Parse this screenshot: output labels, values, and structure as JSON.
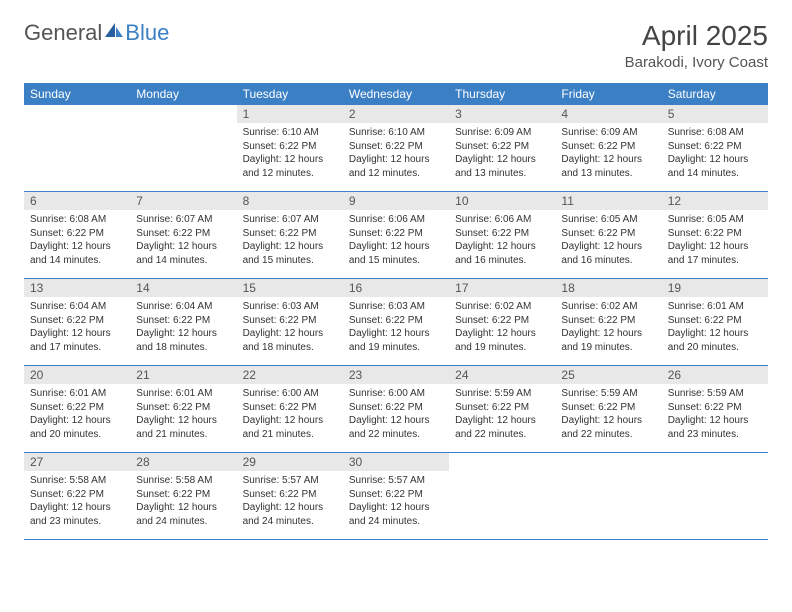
{
  "logo": {
    "text1": "General",
    "text2": "Blue"
  },
  "title": "April 2025",
  "location": "Barakodi, Ivory Coast",
  "colors": {
    "header_bg": "#3b7fc4",
    "daynum_bg": "#e8e8e8",
    "text": "#333333",
    "title_text": "#444444",
    "logo_gray": "#555555",
    "logo_blue": "#3b7fc4"
  },
  "day_names": [
    "Sunday",
    "Monday",
    "Tuesday",
    "Wednesday",
    "Thursday",
    "Friday",
    "Saturday"
  ],
  "weeks": [
    [
      {
        "num": "",
        "sunrise": "",
        "sunset": "",
        "daylight": ""
      },
      {
        "num": "",
        "sunrise": "",
        "sunset": "",
        "daylight": ""
      },
      {
        "num": "1",
        "sunrise": "Sunrise: 6:10 AM",
        "sunset": "Sunset: 6:22 PM",
        "daylight": "Daylight: 12 hours and 12 minutes."
      },
      {
        "num": "2",
        "sunrise": "Sunrise: 6:10 AM",
        "sunset": "Sunset: 6:22 PM",
        "daylight": "Daylight: 12 hours and 12 minutes."
      },
      {
        "num": "3",
        "sunrise": "Sunrise: 6:09 AM",
        "sunset": "Sunset: 6:22 PM",
        "daylight": "Daylight: 12 hours and 13 minutes."
      },
      {
        "num": "4",
        "sunrise": "Sunrise: 6:09 AM",
        "sunset": "Sunset: 6:22 PM",
        "daylight": "Daylight: 12 hours and 13 minutes."
      },
      {
        "num": "5",
        "sunrise": "Sunrise: 6:08 AM",
        "sunset": "Sunset: 6:22 PM",
        "daylight": "Daylight: 12 hours and 14 minutes."
      }
    ],
    [
      {
        "num": "6",
        "sunrise": "Sunrise: 6:08 AM",
        "sunset": "Sunset: 6:22 PM",
        "daylight": "Daylight: 12 hours and 14 minutes."
      },
      {
        "num": "7",
        "sunrise": "Sunrise: 6:07 AM",
        "sunset": "Sunset: 6:22 PM",
        "daylight": "Daylight: 12 hours and 14 minutes."
      },
      {
        "num": "8",
        "sunrise": "Sunrise: 6:07 AM",
        "sunset": "Sunset: 6:22 PM",
        "daylight": "Daylight: 12 hours and 15 minutes."
      },
      {
        "num": "9",
        "sunrise": "Sunrise: 6:06 AM",
        "sunset": "Sunset: 6:22 PM",
        "daylight": "Daylight: 12 hours and 15 minutes."
      },
      {
        "num": "10",
        "sunrise": "Sunrise: 6:06 AM",
        "sunset": "Sunset: 6:22 PM",
        "daylight": "Daylight: 12 hours and 16 minutes."
      },
      {
        "num": "11",
        "sunrise": "Sunrise: 6:05 AM",
        "sunset": "Sunset: 6:22 PM",
        "daylight": "Daylight: 12 hours and 16 minutes."
      },
      {
        "num": "12",
        "sunrise": "Sunrise: 6:05 AM",
        "sunset": "Sunset: 6:22 PM",
        "daylight": "Daylight: 12 hours and 17 minutes."
      }
    ],
    [
      {
        "num": "13",
        "sunrise": "Sunrise: 6:04 AM",
        "sunset": "Sunset: 6:22 PM",
        "daylight": "Daylight: 12 hours and 17 minutes."
      },
      {
        "num": "14",
        "sunrise": "Sunrise: 6:04 AM",
        "sunset": "Sunset: 6:22 PM",
        "daylight": "Daylight: 12 hours and 18 minutes."
      },
      {
        "num": "15",
        "sunrise": "Sunrise: 6:03 AM",
        "sunset": "Sunset: 6:22 PM",
        "daylight": "Daylight: 12 hours and 18 minutes."
      },
      {
        "num": "16",
        "sunrise": "Sunrise: 6:03 AM",
        "sunset": "Sunset: 6:22 PM",
        "daylight": "Daylight: 12 hours and 19 minutes."
      },
      {
        "num": "17",
        "sunrise": "Sunrise: 6:02 AM",
        "sunset": "Sunset: 6:22 PM",
        "daylight": "Daylight: 12 hours and 19 minutes."
      },
      {
        "num": "18",
        "sunrise": "Sunrise: 6:02 AM",
        "sunset": "Sunset: 6:22 PM",
        "daylight": "Daylight: 12 hours and 19 minutes."
      },
      {
        "num": "19",
        "sunrise": "Sunrise: 6:01 AM",
        "sunset": "Sunset: 6:22 PM",
        "daylight": "Daylight: 12 hours and 20 minutes."
      }
    ],
    [
      {
        "num": "20",
        "sunrise": "Sunrise: 6:01 AM",
        "sunset": "Sunset: 6:22 PM",
        "daylight": "Daylight: 12 hours and 20 minutes."
      },
      {
        "num": "21",
        "sunrise": "Sunrise: 6:01 AM",
        "sunset": "Sunset: 6:22 PM",
        "daylight": "Daylight: 12 hours and 21 minutes."
      },
      {
        "num": "22",
        "sunrise": "Sunrise: 6:00 AM",
        "sunset": "Sunset: 6:22 PM",
        "daylight": "Daylight: 12 hours and 21 minutes."
      },
      {
        "num": "23",
        "sunrise": "Sunrise: 6:00 AM",
        "sunset": "Sunset: 6:22 PM",
        "daylight": "Daylight: 12 hours and 22 minutes."
      },
      {
        "num": "24",
        "sunrise": "Sunrise: 5:59 AM",
        "sunset": "Sunset: 6:22 PM",
        "daylight": "Daylight: 12 hours and 22 minutes."
      },
      {
        "num": "25",
        "sunrise": "Sunrise: 5:59 AM",
        "sunset": "Sunset: 6:22 PM",
        "daylight": "Daylight: 12 hours and 22 minutes."
      },
      {
        "num": "26",
        "sunrise": "Sunrise: 5:59 AM",
        "sunset": "Sunset: 6:22 PM",
        "daylight": "Daylight: 12 hours and 23 minutes."
      }
    ],
    [
      {
        "num": "27",
        "sunrise": "Sunrise: 5:58 AM",
        "sunset": "Sunset: 6:22 PM",
        "daylight": "Daylight: 12 hours and 23 minutes."
      },
      {
        "num": "28",
        "sunrise": "Sunrise: 5:58 AM",
        "sunset": "Sunset: 6:22 PM",
        "daylight": "Daylight: 12 hours and 24 minutes."
      },
      {
        "num": "29",
        "sunrise": "Sunrise: 5:57 AM",
        "sunset": "Sunset: 6:22 PM",
        "daylight": "Daylight: 12 hours and 24 minutes."
      },
      {
        "num": "30",
        "sunrise": "Sunrise: 5:57 AM",
        "sunset": "Sunset: 6:22 PM",
        "daylight": "Daylight: 12 hours and 24 minutes."
      },
      {
        "num": "",
        "sunrise": "",
        "sunset": "",
        "daylight": ""
      },
      {
        "num": "",
        "sunrise": "",
        "sunset": "",
        "daylight": ""
      },
      {
        "num": "",
        "sunrise": "",
        "sunset": "",
        "daylight": ""
      }
    ]
  ]
}
